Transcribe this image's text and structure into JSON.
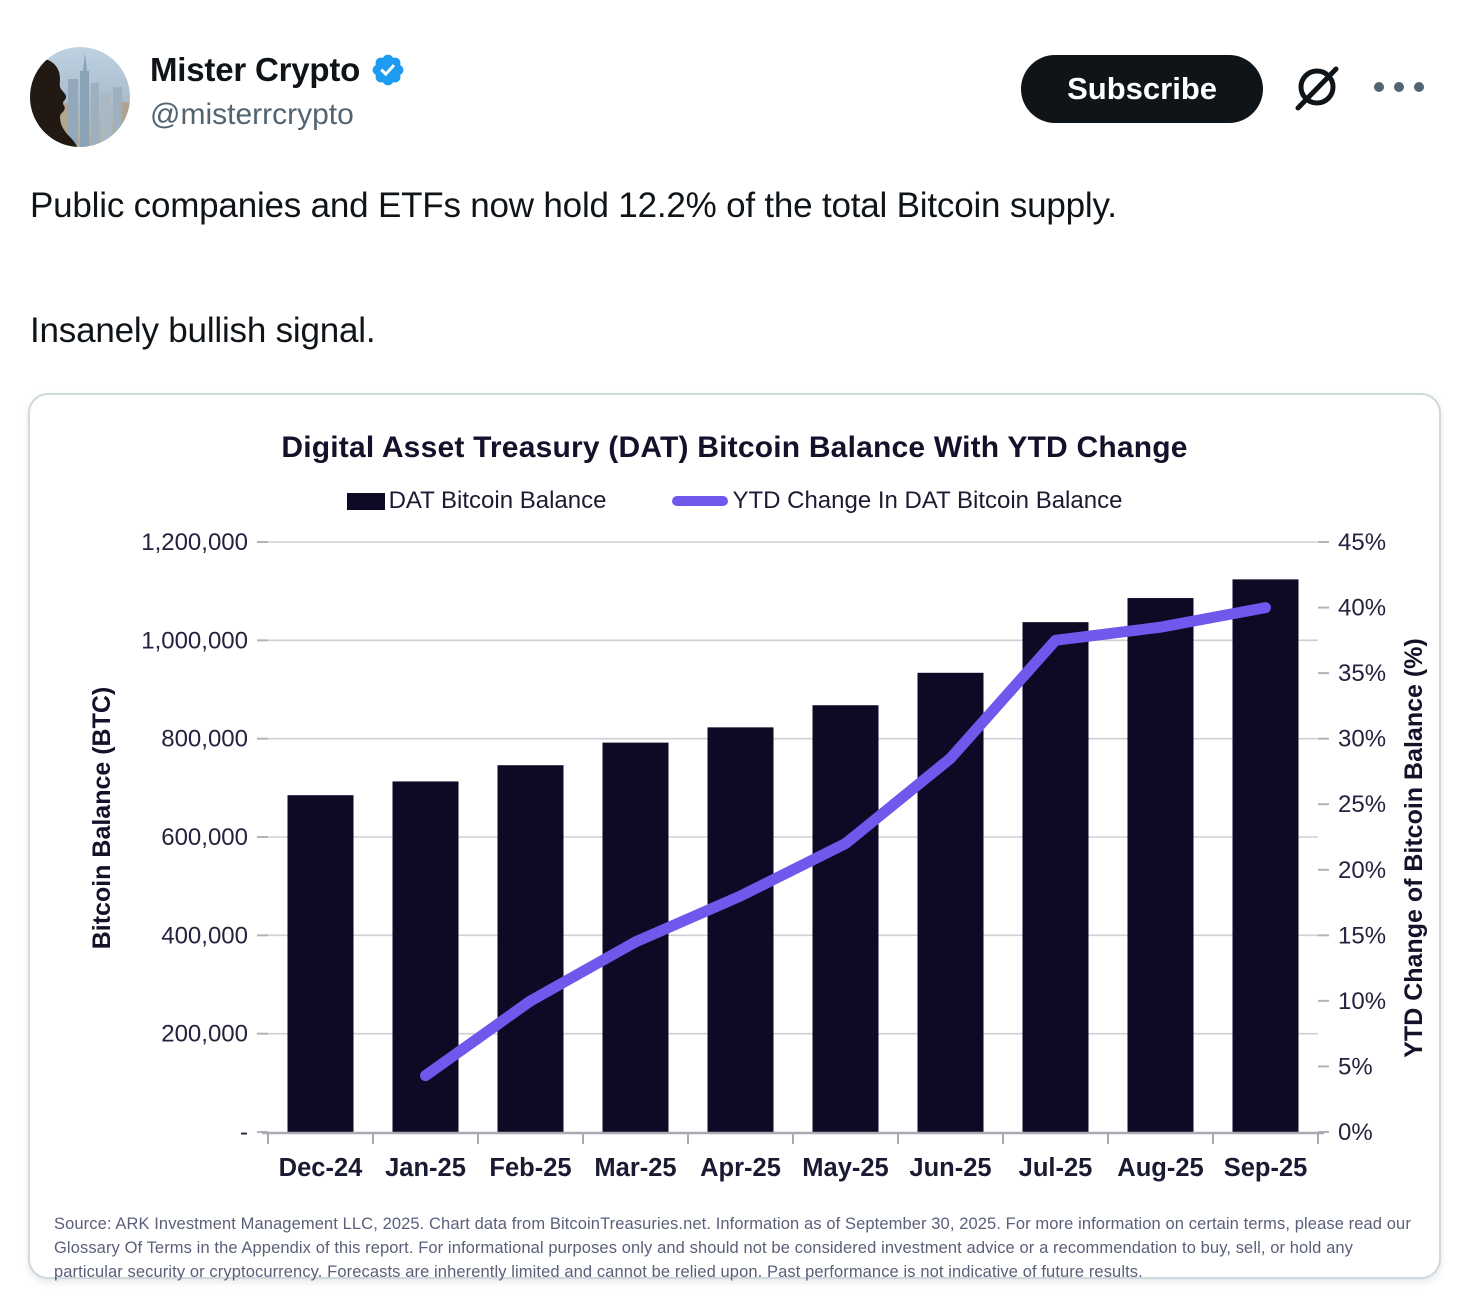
{
  "header": {
    "display_name": "Mister Crypto",
    "handle": "@misterrcrypto",
    "subscribe_label": "Subscribe"
  },
  "tweet": {
    "paragraph1": "Public companies and ETFs now hold 12.2% of the total Bitcoin supply.",
    "paragraph2": "Insanely bullish signal."
  },
  "chart_data": {
    "type": "combo-bar-line",
    "title": "Digital Asset Treasury (DAT) Bitcoin Balance With YTD Change",
    "categories": [
      "Dec-24",
      "Jan-25",
      "Feb-25",
      "Mar-25",
      "Apr-25",
      "May-25",
      "Jun-25",
      "Jul-25",
      "Aug-25",
      "Sep-25"
    ],
    "series": [
      {
        "name": "DAT Bitcoin Balance",
        "type": "bar",
        "axis": "left",
        "color": "#0d0a26",
        "values": [
          685000,
          713000,
          746000,
          792000,
          823000,
          868000,
          934000,
          1037000,
          1086000,
          1124000
        ]
      },
      {
        "name": "YTD Change In DAT Bitcoin Balance",
        "type": "line",
        "axis": "right",
        "color": "#7257ec",
        "values": [
          null,
          4.3,
          10,
          14.5,
          18,
          22,
          28.5,
          37.5,
          38.5,
          40
        ]
      }
    ],
    "left_axis": {
      "label": "Bitcoin Balance (BTC)",
      "min": 0,
      "max": 1200000,
      "step": 200000,
      "tick_labels": [
        "1,200,000",
        "1,000,000",
        "800,000",
        "600,000",
        "400,000",
        "200,000",
        "-"
      ]
    },
    "right_axis": {
      "label": "YTD Change of Bitcoin Balance (%)",
      "min": 0,
      "max": 45,
      "step": 5,
      "tick_labels": [
        "45%",
        "40%",
        "35%",
        "30%",
        "25%",
        "20%",
        "15%",
        "10%",
        "5%",
        "0%"
      ]
    },
    "legend_position": "top",
    "grid": true
  },
  "chart_footer": {
    "disclaimer": "Source: ARK Investment Management LLC, 2025. Chart data from BitcoinTreasuries.net. Information as of September 30, 2025. For more information on certain terms, please read our Glossary Of Terms in the Appendix of this report. For informational purposes only and should not be considered investment advice or a recommendation to buy, sell, or hold any particular security or cryptocurrency. Forecasts are inherently limited and cannot be relied upon. Past performance is not indicative of future results."
  },
  "colors": {
    "accent_blue": "#1d9bf0",
    "bar": "#0d0a26",
    "line": "#7257ec",
    "text_primary": "#0f1419",
    "text_secondary": "#536471",
    "card_border": "#cfd9de",
    "gridline": "#cfcfd6",
    "axis_line": "#a9a9b4"
  }
}
